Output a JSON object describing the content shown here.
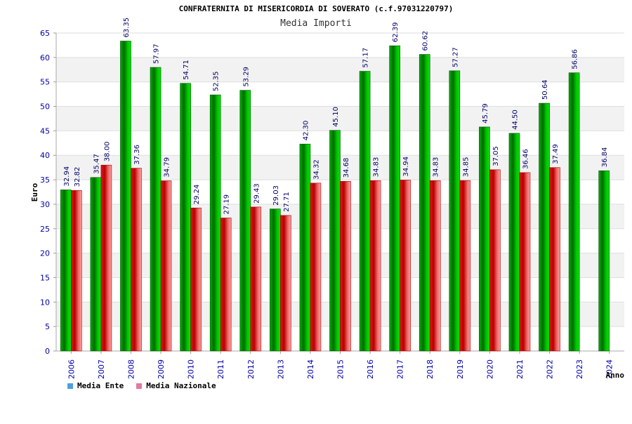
{
  "chart_data": {
    "type": "bar",
    "title": "CONFRATERNITA DI MISERICORDIA DI SOVERATO (c.f.97031220797)",
    "subtitle": "Media Importi",
    "xlabel": "Anno",
    "ylabel": "Euro",
    "ylim": [
      0,
      65
    ],
    "yticks": [
      0,
      5,
      10,
      15,
      20,
      25,
      30,
      35,
      40,
      45,
      50,
      55,
      60,
      65
    ],
    "grid": true,
    "categories": [
      "2006",
      "2007",
      "2008",
      "2009",
      "2010",
      "2011",
      "2012",
      "2013",
      "2014",
      "2015",
      "2016",
      "2017",
      "2018",
      "2019",
      "2020",
      "2021",
      "2022",
      "2023",
      "2024"
    ],
    "series": [
      {
        "name": "Media Ente",
        "color": "#00aa00",
        "legend_color": "#4f9fe0",
        "values": [
          32.94,
          35.47,
          63.35,
          57.97,
          54.71,
          52.35,
          53.29,
          29.03,
          42.3,
          45.1,
          57.17,
          62.39,
          60.62,
          57.27,
          45.79,
          44.5,
          50.64,
          56.86,
          36.84
        ],
        "labels": [
          "32.94",
          "35.47",
          "63.35",
          "57.97",
          "54.71",
          "52.35",
          "53.29",
          "29.03",
          "42.30",
          "45.10",
          "57.17",
          "62.39",
          "60.62",
          "57.27",
          "45.79",
          "44.50",
          "50.64",
          "56.86",
          "36.84"
        ]
      },
      {
        "name": "Media Nazionale",
        "color": "#e02020",
        "legend_color": "#e07aa0",
        "values": [
          32.82,
          38.0,
          37.36,
          34.79,
          29.24,
          27.19,
          29.43,
          27.71,
          34.32,
          34.68,
          34.83,
          34.94,
          34.83,
          34.85,
          37.05,
          36.46,
          37.49,
          null,
          null
        ],
        "labels": [
          "32.82",
          "38.00",
          "37.36",
          "34.79",
          "29.24",
          "27.19",
          "29.43",
          "27.71",
          "34.32",
          "34.68",
          "34.83",
          "34.94",
          "34.83",
          "34.85",
          "37.05",
          "36.46",
          "37.49",
          null,
          null
        ]
      }
    ],
    "legend": [
      "Media Ente",
      "Media Nazionale"
    ]
  }
}
